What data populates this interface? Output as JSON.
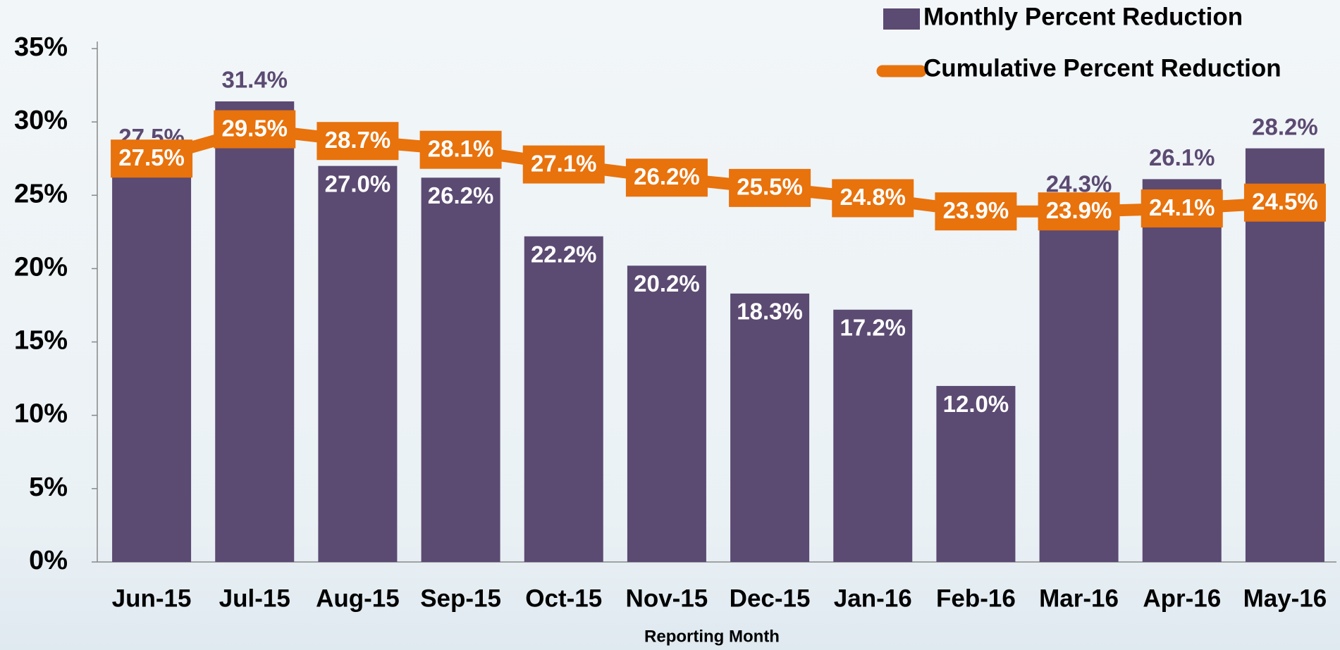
{
  "chart_data": {
    "type": "bar_line",
    "x_label": "Reporting Month",
    "categories": [
      "Jun-15",
      "Jul-15",
      "Aug-15",
      "Sep-15",
      "Oct-15",
      "Nov-15",
      "Dec-15",
      "Jan-16",
      "Feb-16",
      "Mar-16",
      "Apr-16",
      "May-16"
    ],
    "series": [
      {
        "name": "Monthly Percent Reduction",
        "color": "#5b4a72",
        "kind": "bar",
        "values": [
          27.5,
          31.4,
          27.0,
          26.2,
          22.2,
          20.2,
          18.3,
          17.2,
          12.0,
          24.3,
          26.1,
          28.2
        ],
        "value_labels": [
          "27.5%",
          "31.4%",
          "27.0%",
          "26.2%",
          "22.2%",
          "20.2%",
          "18.3%",
          "17.2%",
          "12.0%",
          "24.3%",
          "26.1%",
          "28.2%"
        ]
      },
      {
        "name": "Cumulative Percent Reduction",
        "color": "#e8720c",
        "kind": "line",
        "values": [
          27.5,
          29.5,
          28.7,
          28.1,
          27.1,
          26.2,
          25.5,
          24.8,
          23.9,
          23.9,
          24.1,
          24.5
        ],
        "value_labels": [
          "27.5%",
          "29.5%",
          "28.7%",
          "28.1%",
          "27.1%",
          "26.2%",
          "25.5%",
          "24.8%",
          "23.9%",
          "23.9%",
          "24.1%",
          "24.5%"
        ]
      }
    ],
    "ylim": [
      0,
      35
    ],
    "yticks": [
      {
        "value": 0,
        "label": "0%"
      },
      {
        "value": 5,
        "label": "5%"
      },
      {
        "value": 10,
        "label": "10%"
      },
      {
        "value": 15,
        "label": "15%"
      },
      {
        "value": 20,
        "label": "20%"
      },
      {
        "value": 25,
        "label": "25%"
      },
      {
        "value": 30,
        "label": "30%"
      },
      {
        "value": 35,
        "label": "35%"
      }
    ],
    "legend": "top-right"
  }
}
